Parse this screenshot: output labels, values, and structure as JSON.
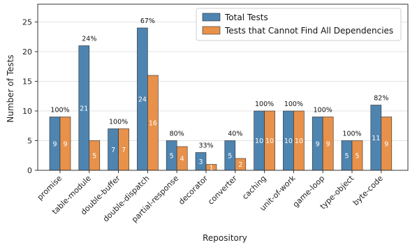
{
  "chart_data": {
    "type": "bar",
    "xlabel": "Repository",
    "ylabel": "Number of Tests",
    "ylim": [
      0,
      28
    ],
    "yticks": [
      0,
      5,
      10,
      15,
      20,
      25
    ],
    "grid": "horizontal",
    "legend_position": "top-right",
    "categories": [
      "promise",
      "table-module",
      "double-buffer",
      "double-dispatch",
      "partial-response",
      "decorator",
      "converter",
      "caching",
      "unit-of-work",
      "game-loop",
      "type-object",
      "byte-code"
    ],
    "series": [
      {
        "name": "Total Tests",
        "color": "#4e84b0",
        "values": [
          9,
          21,
          7,
          24,
          5,
          3,
          5,
          10,
          10,
          9,
          5,
          11
        ]
      },
      {
        "name": "Tests that Cannot Find All Dependencies",
        "color": "#e8914a",
        "values": [
          9,
          5,
          7,
          16,
          4,
          1,
          2,
          10,
          10,
          9,
          5,
          9
        ]
      }
    ],
    "percent_labels": [
      "100%",
      "24%",
      "100%",
      "67%",
      "80%",
      "33%",
      "40%",
      "100%",
      "100%",
      "100%",
      "100%",
      "82%"
    ]
  }
}
